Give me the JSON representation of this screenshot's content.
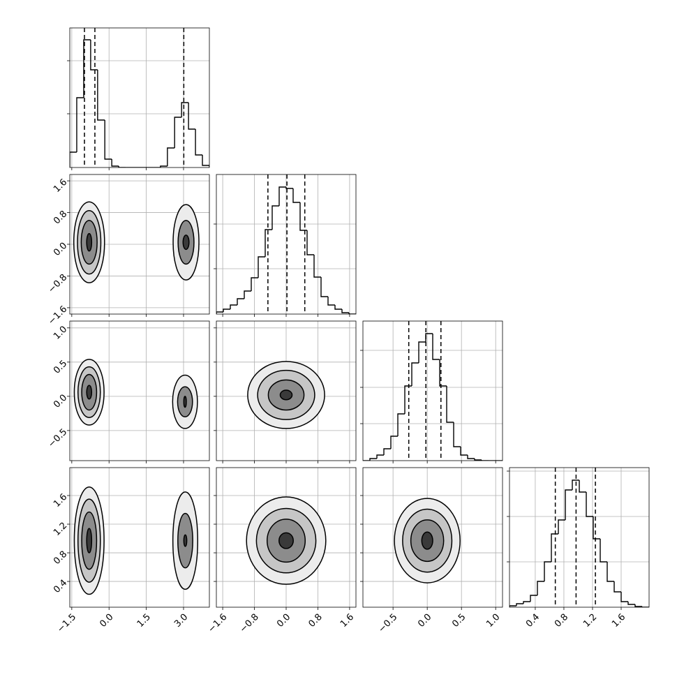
{
  "chart_data": [
    {
      "type": "histogram",
      "color": "#000000",
      "grid": true,
      "xlim": [
        -1.58,
        4.04
      ],
      "xticks": [
        {
          "value": -1.5,
          "label": "−1.5"
        },
        {
          "value": 0,
          "label": "0.0"
        },
        1.5,
        {
          "value": 3,
          "label": "3.0"
        }
      ],
      "ylim": [
        0,
        1
      ],
      "yticks": [
        0.385,
        0.765
      ],
      "bins": [
        -1.58,
        -1.3,
        -1.02,
        -0.74,
        -0.46,
        -0.17,
        0.11,
        0.39,
        0.67,
        0.95,
        1.23,
        1.51,
        1.79,
        2.07,
        2.35,
        2.64,
        2.92,
        3.2,
        3.48,
        3.76,
        4.04
      ],
      "values": [
        0.11,
        0.5,
        0.915,
        0.7,
        0.34,
        0.06,
        0.01,
        0,
        0,
        0,
        0,
        0,
        0,
        0.01,
        0.14,
        0.36,
        0.465,
        0.275,
        0.09,
        0.015
      ],
      "quantiles": [
        -0.99,
        -0.57,
        3.01
      ]
    },
    {
      "type": "contour",
      "color": "#000000",
      "grid": true,
      "xlim": [
        -1.58,
        4.04
      ],
      "xticks": [
        {
          "value": -1.5,
          "label": "−1.5"
        },
        {
          "value": 0,
          "label": "0.0"
        },
        1.5,
        {
          "value": 3,
          "label": "3.0"
        }
      ],
      "ylim": [
        -1.76,
        1.76
      ],
      "yticks": [
        {
          "value": -1.6,
          "label": "−1.6"
        },
        {
          "value": -0.8,
          "label": "−0.8"
        },
        {
          "value": 0,
          "label": "0.0"
        },
        0.8,
        1.6
      ],
      "blobs": [
        {
          "x": -0.8,
          "y": 0.05,
          "rx": [
            0.62,
            0.47,
            0.32,
            0.1
          ],
          "ry": [
            1.02,
            0.8,
            0.55,
            0.22
          ]
        },
        {
          "x": 3.1,
          "y": 0.05,
          "rx": [
            0.52,
            0.32,
            0.12
          ],
          "ry": [
            0.95,
            0.55,
            0.18
          ]
        }
      ]
    },
    {
      "type": "histogram",
      "color": "#000000",
      "grid": true,
      "xlim": [
        -1.76,
        1.76
      ],
      "xticks": [
        {
          "value": -1.6,
          "label": "−1.6"
        },
        {
          "value": -0.8,
          "label": "−0.8"
        },
        {
          "value": 0,
          "label": "0.0"
        },
        0.8,
        1.6
      ],
      "ylim": [
        0,
        1
      ],
      "yticks": [
        0.325,
        0.645
      ],
      "bins": [
        -1.76,
        -1.584,
        -1.408,
        -1.232,
        -1.056,
        -0.88,
        -0.704,
        -0.528,
        -0.352,
        -0.176,
        0,
        0.176,
        0.352,
        0.528,
        0.704,
        0.88,
        1.056,
        1.232,
        1.408,
        1.584,
        1.76
      ],
      "values": [
        0.015,
        0.035,
        0.065,
        0.11,
        0.165,
        0.26,
        0.41,
        0.605,
        0.775,
        0.91,
        0.9,
        0.8,
        0.6,
        0.425,
        0.265,
        0.125,
        0.065,
        0.035,
        0.01,
        0
      ],
      "quantiles": [
        -0.46,
        0.02,
        0.47
      ]
    },
    {
      "type": "contour",
      "color": "#000000",
      "grid": true,
      "xlim": [
        -1.58,
        4.04
      ],
      "xticks": [
        {
          "value": -1.5,
          "label": "−1.5"
        },
        {
          "value": 0,
          "label": "0.0"
        },
        1.5,
        {
          "value": 3,
          "label": "3.0"
        }
      ],
      "ylim": [
        -0.94,
        1.1
      ],
      "yticks": [
        {
          "value": -0.5,
          "label": "−0.5"
        },
        {
          "value": 0,
          "label": "0.0"
        },
        0.5,
        {
          "value": 1,
          "label": "1.0"
        }
      ],
      "blobs": [
        {
          "x": -0.8,
          "y": 0.06,
          "rx": [
            0.6,
            0.45,
            0.3,
            0.1
          ],
          "ry": [
            0.48,
            0.37,
            0.26,
            0.1
          ]
        },
        {
          "x": 3.06,
          "y": -0.08,
          "rx": [
            0.5,
            0.3,
            0.05
          ],
          "ry": [
            0.39,
            0.22,
            0.08
          ]
        }
      ]
    },
    {
      "type": "contour",
      "color": "#000000",
      "grid": true,
      "xlim": [
        -1.76,
        1.76
      ],
      "xticks": [
        {
          "value": -1.6,
          "label": "−1.6"
        },
        {
          "value": -0.8,
          "label": "−0.8"
        },
        {
          "value": 0,
          "label": "0.0"
        },
        0.8,
        1.6
      ],
      "ylim": [
        -0.94,
        1.1
      ],
      "yticks": [
        {
          "value": -0.5,
          "label": "−0.5"
        },
        {
          "value": 0,
          "label": "0.0"
        },
        0.5,
        {
          "value": 1,
          "label": "1.0"
        }
      ],
      "blobs": [
        {
          "x": 0,
          "y": 0.02,
          "rx": [
            0.97,
            0.72,
            0.45,
            0.15
          ],
          "ry": [
            0.49,
            0.36,
            0.22,
            0.07
          ]
        }
      ]
    },
    {
      "type": "histogram",
      "color": "#000000",
      "grid": true,
      "xlim": [
        -0.94,
        1.1
      ],
      "xticks": [
        {
          "value": -0.5,
          "label": "−0.5"
        },
        {
          "value": 0,
          "label": "0.0"
        },
        0.5,
        {
          "value": 1,
          "label": "1.0"
        }
      ],
      "ylim": [
        0,
        1
      ],
      "yticks": [
        0.265,
        0.525,
        0.79
      ],
      "bins": [
        -0.94,
        -0.838,
        -0.736,
        -0.634,
        -0.532,
        -0.43,
        -0.328,
        -0.226,
        -0.124,
        -0.022,
        0.08,
        0.182,
        0.284,
        0.386,
        0.488,
        0.59,
        0.692,
        0.794,
        0.896,
        0.998,
        1.1
      ],
      "values": [
        0,
        0.015,
        0.04,
        0.085,
        0.175,
        0.335,
        0.535,
        0.7,
        0.85,
        0.91,
        0.725,
        0.535,
        0.275,
        0.1,
        0.04,
        0.015,
        0.005,
        0,
        0,
        0
      ],
      "quantiles": [
        -0.27,
        -0.02,
        0.2
      ]
    },
    {
      "type": "contour",
      "color": "#000000",
      "grid": true,
      "xlim": [
        -1.58,
        4.04
      ],
      "xticks": [
        {
          "value": -1.5,
          "label": "−1.5"
        },
        {
          "value": 0,
          "label": "0.0"
        },
        1.5,
        {
          "value": 3,
          "label": "3.0"
        }
      ],
      "ylim": [
        0.04,
        1.99
      ],
      "yticks": [
        0.4,
        0.8,
        1.2,
        1.6
      ],
      "blobs": [
        {
          "x": -0.8,
          "y": 0.97,
          "rx": [
            0.6,
            0.45,
            0.3,
            0.1
          ],
          "ry": [
            0.75,
            0.58,
            0.4,
            0.17
          ]
        },
        {
          "x": 3.07,
          "y": 0.97,
          "rx": [
            0.5,
            0.3,
            0.06
          ],
          "ry": [
            0.68,
            0.38,
            0.08
          ]
        }
      ]
    },
    {
      "type": "contour",
      "color": "#000000",
      "grid": true,
      "xlim": [
        -1.76,
        1.76
      ],
      "xticks": [
        {
          "value": -1.6,
          "label": "−1.6"
        },
        {
          "value": -0.8,
          "label": "−0.8"
        },
        {
          "value": 0,
          "label": "0.0"
        },
        0.8,
        1.6
      ],
      "ylim": [
        0.04,
        1.99
      ],
      "yticks": [
        0.4,
        0.8,
        1.2,
        1.6
      ],
      "blobs": [
        {
          "x": 0,
          "y": 0.97,
          "rx": [
            1.0,
            0.75,
            0.48,
            0.18
          ],
          "ry": [
            0.61,
            0.45,
            0.3,
            0.11
          ]
        }
      ]
    },
    {
      "type": "contour",
      "color": "#000000",
      "grid": true,
      "xlim": [
        -0.94,
        1.1
      ],
      "xticks": [
        {
          "value": -0.5,
          "label": "−0.5"
        },
        {
          "value": 0,
          "label": "0.0"
        },
        0.5,
        {
          "value": 1,
          "label": "1.0"
        }
      ],
      "ylim": [
        0.04,
        1.99
      ],
      "yticks": [
        0.4,
        0.8,
        1.2,
        1.6
      ],
      "blobs": [
        {
          "x": 0,
          "y": 0.97,
          "rx": [
            0.48,
            0.36,
            0.24,
            0.08
          ],
          "ry": [
            0.59,
            0.44,
            0.29,
            0.12
          ]
        }
      ]
    },
    {
      "type": "histogram",
      "color": "#000000",
      "grid": true,
      "xlim": [
        0.04,
        1.99
      ],
      "xticks": [
        0.4,
        0.8,
        1.2,
        1.6
      ],
      "ylim": [
        0,
        1
      ],
      "yticks": [
        0.325,
        0.65,
        0.975
      ],
      "bins": [
        0.04,
        0.1375,
        0.235,
        0.3325,
        0.43,
        0.5275,
        0.625,
        0.7225,
        0.82,
        0.9175,
        1.015,
        1.1125,
        1.21,
        1.3075,
        1.405,
        1.5025,
        1.6,
        1.6975,
        1.795,
        1.8925,
        1.99
      ],
      "values": [
        0.01,
        0.025,
        0.04,
        0.085,
        0.185,
        0.325,
        0.525,
        0.625,
        0.84,
        0.91,
        0.825,
        0.65,
        0.49,
        0.325,
        0.185,
        0.11,
        0.04,
        0.02,
        0.005,
        0
      ],
      "quantiles": [
        0.68,
        0.97,
        1.24
      ]
    }
  ]
}
